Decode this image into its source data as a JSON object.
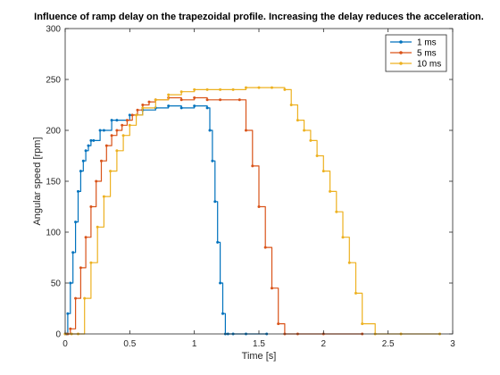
{
  "chart_data": {
    "type": "line",
    "title": "Influence of ramp delay on the trapezoidal profile. Increasing the delay reduces the acceleration.",
    "xlabel": "Time [s]",
    "ylabel": "Angular speed [rpm]",
    "xlim": [
      0,
      3
    ],
    "ylim": [
      0,
      300
    ],
    "xticks": [
      "0",
      "0.5",
      "1",
      "1.5",
      "2",
      "2.5",
      "3"
    ],
    "yticks": [
      "0",
      "50",
      "100",
      "150",
      "200",
      "250",
      "300"
    ],
    "grid": false,
    "legend_position": "top-right",
    "series": [
      {
        "name": "1 ms",
        "color": "#0072BD",
        "x": [
          0,
          0.01,
          0.02,
          0.04,
          0.06,
          0.08,
          0.1,
          0.12,
          0.14,
          0.16,
          0.18,
          0.2,
          0.22,
          0.27,
          0.3,
          0.36,
          0.4,
          0.5,
          0.6,
          0.7,
          0.8,
          0.9,
          1.0,
          1.1,
          1.12,
          1.14,
          1.16,
          1.18,
          1.2,
          1.22,
          1.24,
          1.26,
          1.3,
          1.4,
          1.56
        ],
        "values": [
          0,
          0,
          20,
          50,
          80,
          110,
          140,
          160,
          170,
          180,
          185,
          190,
          190,
          200,
          200,
          210,
          210,
          215,
          220,
          222,
          224,
          222,
          224,
          222,
          200,
          170,
          130,
          90,
          50,
          20,
          0,
          0,
          0,
          0,
          0
        ]
      },
      {
        "name": "5 ms",
        "color": "#D95319",
        "x": [
          0,
          0.02,
          0.04,
          0.08,
          0.12,
          0.16,
          0.2,
          0.24,
          0.28,
          0.32,
          0.36,
          0.4,
          0.44,
          0.48,
          0.52,
          0.56,
          0.6,
          0.65,
          0.7,
          0.8,
          0.9,
          1.0,
          1.1,
          1.2,
          1.35,
          1.4,
          1.45,
          1.5,
          1.55,
          1.6,
          1.65,
          1.7,
          1.8,
          2.0,
          2.3
        ],
        "values": [
          0,
          0,
          5,
          35,
          65,
          95,
          125,
          150,
          170,
          185,
          195,
          200,
          205,
          210,
          215,
          220,
          225,
          228,
          230,
          232,
          230,
          232,
          230,
          230,
          230,
          200,
          165,
          125,
          85,
          45,
          10,
          0,
          0,
          0,
          0
        ]
      },
      {
        "name": "10 ms",
        "color": "#EDB120",
        "x": [
          0,
          0.05,
          0.1,
          0.15,
          0.2,
          0.25,
          0.3,
          0.35,
          0.4,
          0.45,
          0.5,
          0.55,
          0.6,
          0.7,
          0.8,
          0.9,
          1.0,
          1.1,
          1.2,
          1.3,
          1.4,
          1.5,
          1.6,
          1.7,
          1.75,
          1.8,
          1.85,
          1.9,
          1.95,
          2.0,
          2.05,
          2.1,
          2.15,
          2.2,
          2.25,
          2.3,
          2.4,
          2.6,
          2.9
        ],
        "values": [
          0,
          0,
          0,
          35,
          70,
          105,
          135,
          160,
          180,
          195,
          205,
          215,
          222,
          230,
          235,
          238,
          240,
          240,
          240,
          240,
          242,
          242,
          242,
          240,
          225,
          210,
          200,
          190,
          175,
          160,
          140,
          120,
          95,
          70,
          40,
          10,
          0,
          0,
          0
        ]
      }
    ]
  }
}
